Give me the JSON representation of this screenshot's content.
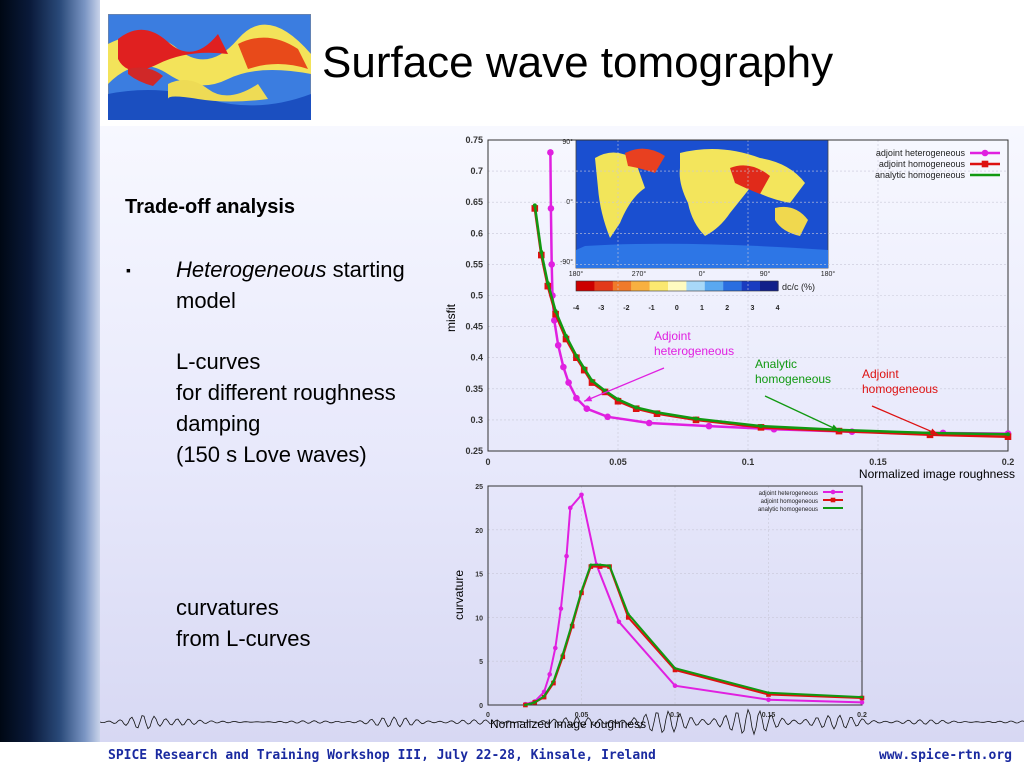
{
  "slide": {
    "title": "Surface wave tomography",
    "subtitle": "Trade-off analysis",
    "bullet_symbol": "▪",
    "bullet_italic": "Heterogeneous",
    "bullet_rest": " starting",
    "bullet_line2": "model",
    "lcurve_lines": [
      "L-curves",
      "for different roughness",
      "damping",
      "(150 s Love waves)"
    ],
    "curv_lines": [
      "curvatures",
      "from L-curves"
    ],
    "footer_left": "SPICE Research and Training Workshop III, July 22-28, Kinsale, Ireland",
    "footer_right": "www.spice-rtn.org"
  },
  "colors": {
    "adjoint_heterogeneous": "#e020e0",
    "adjoint_homogeneous": "#dd1111",
    "analytic_homogeneous": "#119911"
  },
  "chart_data": [
    {
      "type": "line",
      "ylabel": "misfit",
      "xlabel": "Normalized image roughness",
      "xlim": [
        0,
        0.2
      ],
      "ylim": [
        0.25,
        0.75
      ],
      "xticks": [
        "0",
        "0.05",
        "0.1",
        "0.15",
        "0.2"
      ],
      "yticks": [
        "0.25",
        "0.3",
        "0.35",
        "0.4",
        "0.45",
        "0.5",
        "0.55",
        "0.6",
        "0.65",
        "0.7",
        "0.75"
      ],
      "legend": "top-right",
      "series": [
        {
          "name": "adjoint heterogeneous",
          "color": "#e020e0",
          "marker": "circle",
          "points": [
            [
              0.024,
              0.73
            ],
            [
              0.0242,
              0.64
            ],
            [
              0.0245,
              0.55
            ],
            [
              0.0248,
              0.5
            ],
            [
              0.0255,
              0.46
            ],
            [
              0.027,
              0.42
            ],
            [
              0.029,
              0.385
            ],
            [
              0.031,
              0.36
            ],
            [
              0.034,
              0.335
            ],
            [
              0.038,
              0.318
            ],
            [
              0.046,
              0.305
            ],
            [
              0.062,
              0.295
            ],
            [
              0.085,
              0.29
            ],
            [
              0.11,
              0.285
            ],
            [
              0.14,
              0.281
            ],
            [
              0.175,
              0.279
            ],
            [
              0.2,
              0.278
            ]
          ]
        },
        {
          "name": "adjoint homogeneous",
          "color": "#dd1111",
          "marker": "square",
          "points": [
            [
              0.018,
              0.64
            ],
            [
              0.0205,
              0.565
            ],
            [
              0.023,
              0.515
            ],
            [
              0.026,
              0.47
            ],
            [
              0.03,
              0.43
            ],
            [
              0.034,
              0.4
            ],
            [
              0.037,
              0.38
            ],
            [
              0.04,
              0.36
            ],
            [
              0.045,
              0.345
            ],
            [
              0.05,
              0.33
            ],
            [
              0.057,
              0.318
            ],
            [
              0.065,
              0.31
            ],
            [
              0.08,
              0.3
            ],
            [
              0.105,
              0.288
            ],
            [
              0.135,
              0.282
            ],
            [
              0.17,
              0.276
            ],
            [
              0.2,
              0.273
            ]
          ]
        },
        {
          "name": "analytic homogeneous",
          "color": "#119911",
          "marker": "none",
          "points": [
            [
              0.018,
              0.645
            ],
            [
              0.0205,
              0.57
            ],
            [
              0.023,
              0.52
            ],
            [
              0.026,
              0.475
            ],
            [
              0.03,
              0.435
            ],
            [
              0.034,
              0.403
            ],
            [
              0.037,
              0.383
            ],
            [
              0.04,
              0.363
            ],
            [
              0.045,
              0.347
            ],
            [
              0.05,
              0.333
            ],
            [
              0.057,
              0.32
            ],
            [
              0.065,
              0.312
            ],
            [
              0.08,
              0.302
            ],
            [
              0.105,
              0.29
            ],
            [
              0.135,
              0.284
            ],
            [
              0.17,
              0.279
            ],
            [
              0.2,
              0.277
            ]
          ]
        }
      ],
      "annotations": [
        {
          "lines": [
            "Adjoint",
            "heterogeneous"
          ],
          "color": "#e020e0",
          "target": [
            0.037,
            0.33
          ]
        },
        {
          "lines": [
            "Analytic",
            "homogeneous"
          ],
          "color": "#119911",
          "target": [
            0.135,
            0.283
          ]
        },
        {
          "lines": [
            "Adjoint",
            "homogeneous"
          ],
          "color": "#dd1111",
          "target": [
            0.173,
            0.277
          ]
        }
      ],
      "inset_map": {
        "colorbar_label": "dc/c (%)",
        "colorbar_ticks": [
          "-4",
          "-3",
          "-2",
          "-1",
          "0",
          "1",
          "2",
          "3",
          "4"
        ],
        "lat_labels": [
          "90°",
          "0°",
          "-90°"
        ],
        "lon_labels": [
          "180°",
          "270°",
          "0°",
          "90°",
          "180°"
        ]
      }
    },
    {
      "type": "line",
      "ylabel": "curvature",
      "xlabel": "Normalized image roughness",
      "xlim": [
        0,
        0.2
      ],
      "ylim": [
        0,
        25
      ],
      "xticks": [
        "0",
        "0.05",
        "0.1",
        "0.15",
        "0.2"
      ],
      "yticks": [
        "0",
        "5",
        "10",
        "15",
        "20",
        "25"
      ],
      "legend": "top-right",
      "series": [
        {
          "name": "adjoint heterogeneous",
          "color": "#e020e0",
          "marker": "circle",
          "points": [
            [
              0.02,
              0.1
            ],
            [
              0.025,
              0.4
            ],
            [
              0.03,
              1.5
            ],
            [
              0.033,
              3.5
            ],
            [
              0.036,
              6.5
            ],
            [
              0.039,
              11
            ],
            [
              0.042,
              17
            ],
            [
              0.044,
              22.5
            ],
            [
              0.05,
              24
            ],
            [
              0.058,
              16
            ],
            [
              0.07,
              9.5
            ],
            [
              0.1,
              2.2
            ],
            [
              0.15,
              0.6
            ],
            [
              0.2,
              0.3
            ]
          ]
        },
        {
          "name": "adjoint homogeneous",
          "color": "#dd1111",
          "marker": "square",
          "points": [
            [
              0.02,
              0
            ],
            [
              0.025,
              0.3
            ],
            [
              0.03,
              0.9
            ],
            [
              0.035,
              2.5
            ],
            [
              0.04,
              5.5
            ],
            [
              0.045,
              9
            ],
            [
              0.05,
              12.8
            ],
            [
              0.055,
              15.8
            ],
            [
              0.06,
              15.8
            ],
            [
              0.065,
              15.8
            ],
            [
              0.075,
              10
            ],
            [
              0.1,
              4
            ],
            [
              0.15,
              1.2
            ],
            [
              0.2,
              0.8
            ]
          ]
        },
        {
          "name": "analytic homogeneous",
          "color": "#119911",
          "marker": "none",
          "points": [
            [
              0.02,
              0
            ],
            [
              0.025,
              0.3
            ],
            [
              0.03,
              1
            ],
            [
              0.035,
              2.7
            ],
            [
              0.04,
              5.8
            ],
            [
              0.045,
              9.3
            ],
            [
              0.05,
              13
            ],
            [
              0.055,
              16
            ],
            [
              0.06,
              16
            ],
            [
              0.065,
              15.9
            ],
            [
              0.075,
              10.4
            ],
            [
              0.1,
              4.2
            ],
            [
              0.15,
              1.4
            ],
            [
              0.2,
              0.9
            ]
          ]
        }
      ]
    }
  ]
}
